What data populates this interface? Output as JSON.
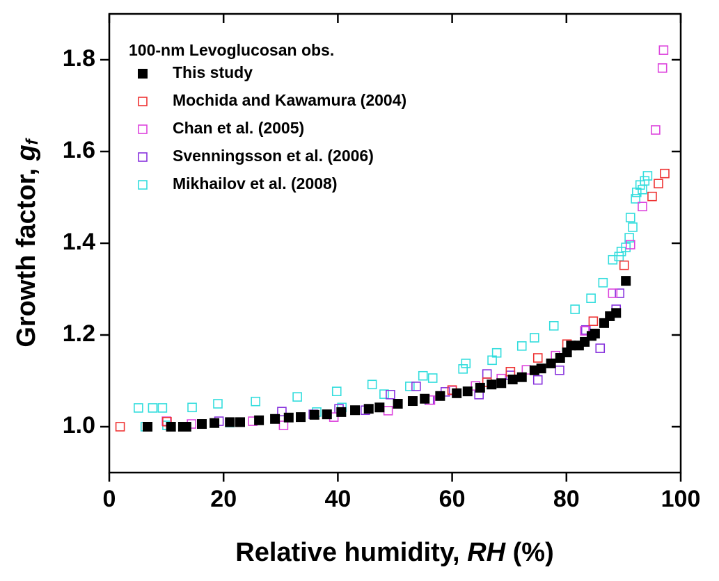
{
  "chart_data": {
    "type": "scatter",
    "xlabel": [
      "Relative humidity, ",
      "RH",
      " (%)"
    ],
    "ylabel": [
      "Growth factor, ",
      "g",
      "f"
    ],
    "legend_title": "100-nm Levoglucosan obs.",
    "legend_loc": "upper left",
    "xlim": [
      0,
      100
    ],
    "xticks": [
      0,
      20,
      40,
      60,
      80,
      100
    ],
    "ylim": [
      0.9,
      1.9
    ],
    "yticks": [
      {
        "value": 1.0,
        "label": "1.0"
      },
      1.2,
      1.4,
      1.6,
      1.8
    ],
    "series": [
      {
        "name": "This study",
        "color": "#000000",
        "filled": true,
        "x": [
          6.7,
          10.8,
          12.9,
          13.5,
          16.2,
          18.4,
          21.1,
          22.9,
          26.2,
          29,
          31.4,
          33.5,
          35.9,
          38.1,
          40.6,
          43,
          45.4,
          47.3,
          50.5,
          53.1,
          55.2,
          57.9,
          60.8,
          62.7,
          64.9,
          66.9,
          68.6,
          70.6,
          72.2,
          74.4,
          75.6,
          77.3,
          78.9,
          80.1,
          80.8,
          82.2,
          83.2,
          84.4,
          85,
          86.6,
          87.6,
          88.7,
          90.4
        ],
        "values": [
          1.0,
          1.0,
          1.0,
          1.0,
          1.006,
          1.008,
          1.01,
          1.01,
          1.014,
          1.017,
          1.02,
          1.021,
          1.026,
          1.027,
          1.032,
          1.036,
          1.039,
          1.042,
          1.05,
          1.056,
          1.061,
          1.067,
          1.073,
          1.077,
          1.085,
          1.092,
          1.095,
          1.103,
          1.108,
          1.123,
          1.127,
          1.138,
          1.15,
          1.162,
          1.177,
          1.177,
          1.185,
          1.198,
          1.203,
          1.226,
          1.241,
          1.248,
          1.318
        ]
      },
      {
        "name": "Mochida and Kawamura (2004)",
        "color": "#ee3333",
        "filled": false,
        "x": [
          1.9,
          10.1,
          60,
          66.1,
          70.2,
          75,
          80.1,
          84.7,
          90.1,
          95,
          96.1,
          97.2
        ],
        "values": [
          1.0,
          1.011,
          1.08,
          1.097,
          1.12,
          1.15,
          1.18,
          1.23,
          1.352,
          1.502,
          1.53,
          1.552
        ]
      },
      {
        "name": "Chan et al. (2005)",
        "color": "#dd44dd",
        "filled": false,
        "x": [
          10,
          14.4,
          25.1,
          30.5,
          39.3,
          48.8,
          56.2,
          60,
          64.1,
          68.6,
          73,
          78.1,
          83.2,
          88.1,
          91.2,
          93.3,
          95.6,
          96.8,
          97
        ],
        "values": [
          1.012,
          1.006,
          1.012,
          1.003,
          1.021,
          1.035,
          1.058,
          1.079,
          1.089,
          1.105,
          1.124,
          1.155,
          1.209,
          1.291,
          1.397,
          1.48,
          1.647,
          1.782,
          1.821
        ]
      },
      {
        "name": "Svenningsson et al. (2006)",
        "color": "#8833dd",
        "filled": false,
        "x": [
          19.2,
          30.2,
          35.7,
          40.2,
          44.8,
          49.2,
          53.7,
          56,
          58.8,
          64.7,
          66.1,
          70.2,
          75,
          78.8,
          83.4,
          85.9,
          88.7,
          89.3
        ],
        "values": [
          1.012,
          1.033,
          1.027,
          1.039,
          1.036,
          1.07,
          1.088,
          1.058,
          1.076,
          1.07,
          1.115,
          1.112,
          1.102,
          1.123,
          1.211,
          1.171,
          1.256,
          1.291
        ]
      },
      {
        "name": "Mikhailov et al. (2008)",
        "color": "#33dddd",
        "filled": false,
        "x": [
          5.1,
          6.3,
          7.6,
          9.3,
          10.1,
          14.5,
          19,
          21.1,
          25.6,
          32.9,
          36.3,
          39.8,
          40.7,
          46,
          48.1,
          52.6,
          54.9,
          56.6,
          61.9,
          62.4,
          67,
          67.8,
          72.2,
          74.4,
          77.8,
          81.5,
          84.3,
          86.4,
          88.1,
          89.2,
          89.6,
          90.4,
          91,
          91.2,
          91.6,
          92.1,
          92.3,
          92.9,
          93.3,
          93.7,
          94.2
        ],
        "values": [
          1.041,
          1.0,
          1.041,
          1.041,
          1.003,
          1.042,
          1.05,
          1.009,
          1.055,
          1.065,
          1.032,
          1.077,
          1.042,
          1.092,
          1.071,
          1.088,
          1.111,
          1.106,
          1.126,
          1.138,
          1.145,
          1.161,
          1.176,
          1.194,
          1.22,
          1.256,
          1.28,
          1.314,
          1.364,
          1.371,
          1.382,
          1.391,
          1.412,
          1.456,
          1.435,
          1.497,
          1.511,
          1.527,
          1.517,
          1.536,
          1.547
        ]
      }
    ]
  }
}
